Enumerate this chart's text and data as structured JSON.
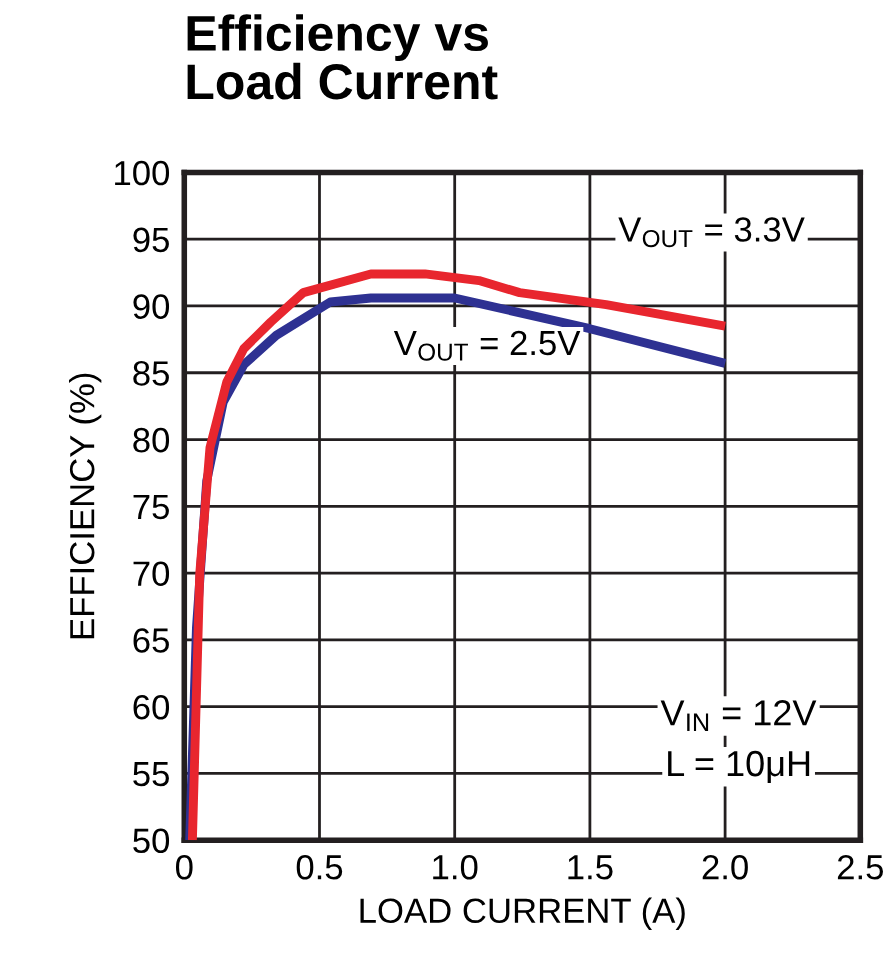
{
  "chart_data": {
    "type": "line",
    "title": "Efficiency vs\nLoad Current",
    "xlabel": "LOAD CURRENT (A)",
    "ylabel": "EFFICIENCY (%)",
    "series": [
      {
        "name": "V$_{OUT}$ = 3.3V",
        "color": "#e8262e",
        "x": [
          0.03,
          0.057,
          0.095,
          0.157,
          0.22,
          0.32,
          0.44,
          0.69,
          0.89,
          1.09,
          1.24,
          1.56,
          2.0
        ],
        "values": [
          50,
          69.9,
          79.4,
          84.3,
          86.8,
          88.8,
          91.0,
          92.4,
          92.4,
          91.9,
          91.0,
          90.1,
          88.5
        ]
      },
      {
        "name": "V$_{OUT}$ = 2.5V",
        "color": "#2e3192",
        "x": [
          0.02,
          0.045,
          0.083,
          0.144,
          0.22,
          0.34,
          0.54,
          0.69,
          1.0,
          1.5,
          2.0
        ],
        "values": [
          50,
          65.9,
          76.9,
          82.8,
          85.6,
          87.8,
          90.3,
          90.6,
          90.6,
          88.3,
          85.7
        ]
      }
    ],
    "annotations": [
      "V$_{IN}$ = 12V",
      "L = 10μH"
    ],
    "xlim": [
      0,
      2.5
    ],
    "xticks": [
      0,
      0.5,
      {
        "value": 1,
        "label": "1.0"
      },
      1.5,
      {
        "value": 2,
        "label": "2.0"
      },
      2.5
    ],
    "ylim": [
      50,
      100
    ],
    "yticks": [
      50,
      55,
      60,
      65,
      70,
      75,
      80,
      85,
      90,
      95,
      100
    ],
    "grid": true,
    "legend": false
  }
}
